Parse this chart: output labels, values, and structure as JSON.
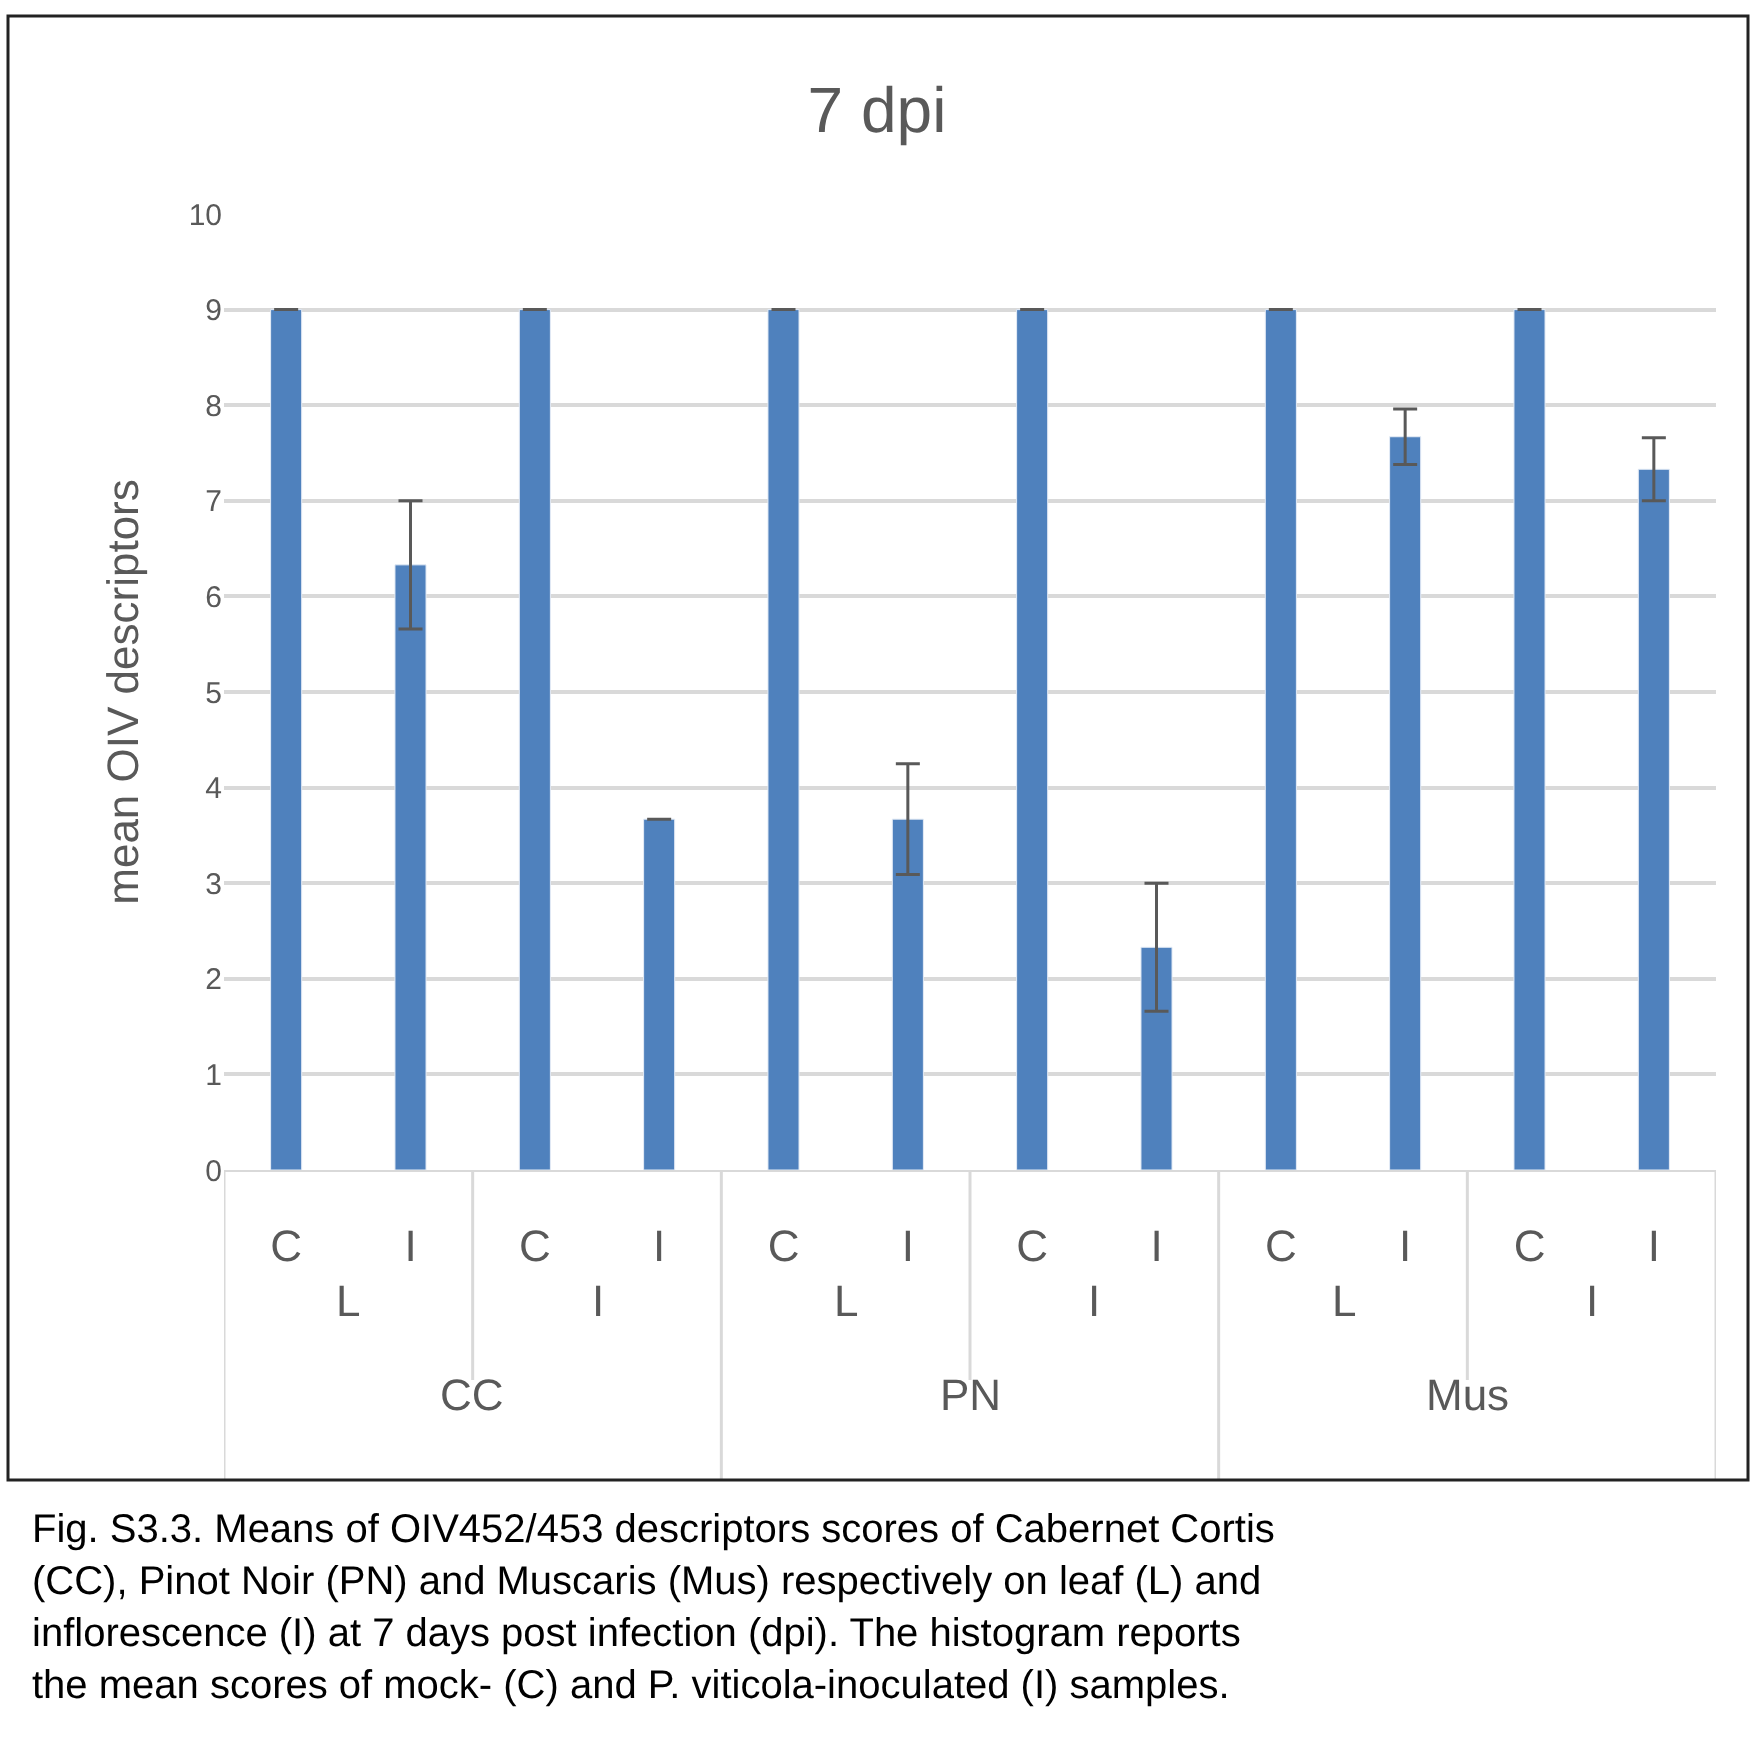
{
  "chart_data": {
    "type": "bar",
    "title": "7 dpi",
    "ylabel": "mean OIV descriptors",
    "categories": [
      "C",
      "I",
      "C",
      "I",
      "C",
      "I",
      "C",
      "I",
      "C",
      "I",
      "C",
      "I"
    ],
    "values": [
      9,
      6.33,
      9,
      3.67,
      9,
      3.67,
      9,
      2.33,
      9,
      7.67,
      9,
      7.33
    ],
    "errors": [
      0,
      0.67,
      0,
      0,
      0,
      0.58,
      0,
      0.67,
      0,
      0.29,
      0,
      0.33
    ],
    "color": "#4f81bd",
    "ylim": [
      0,
      10
    ],
    "yticks": [
      0,
      1,
      2,
      3,
      4,
      5,
      6,
      7,
      8,
      9,
      10
    ],
    "grid": "y",
    "legend": false,
    "annotations": [
      "L",
      "I",
      "L",
      "I",
      "L",
      "I",
      "CC",
      "PN",
      "Mus",
      "Fig. S3.3. Means of OIV452/453 descriptors scores of Cabernet Cortis (CC), Pinot Noir (PN) and Muscaris (Mus) respectively on leaf (L) and inflorescence (I) at 7 days post infection (dpi). The histogram reports the mean scores of mock- (C) and P. viticola-inoculated (I) samples."
    ]
  }
}
